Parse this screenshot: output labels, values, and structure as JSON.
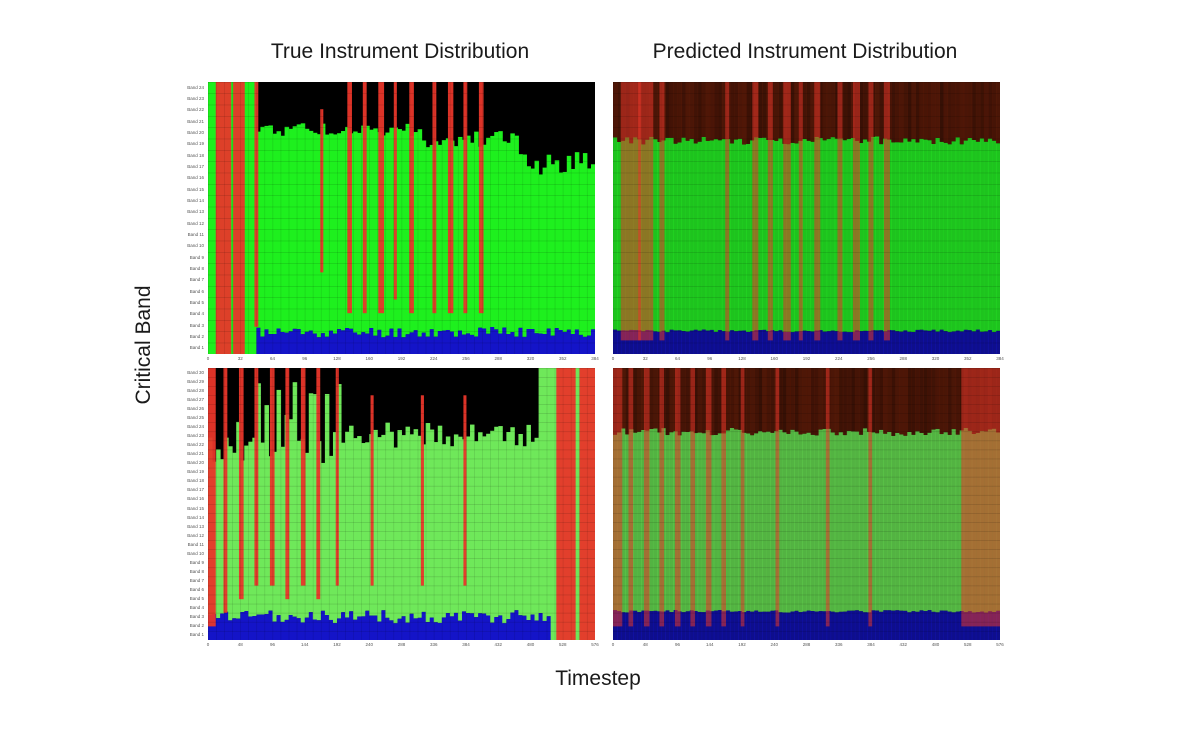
{
  "chart_data": [
    {
      "type": "heatmap",
      "panel": "top-left",
      "title": "True Instrument Distribution",
      "ylabel": "Critical Band",
      "xlabel": "Timestep",
      "y_categories": [
        "Band 1",
        "Band 2",
        "Band 3",
        "Band 4",
        "Band 5",
        "Band 6",
        "Band 7",
        "Band 8",
        "Band 9",
        "Band 10",
        "Band 11",
        "Band 12",
        "Band 13",
        "Band 14",
        "Band 15",
        "Band 16",
        "Band 17",
        "Band 18",
        "Band 19",
        "Band 20",
        "Band 21",
        "Band 22",
        "Band 23",
        "Band 24"
      ],
      "x_ticks": [
        "0",
        "32",
        "64",
        "96",
        "128",
        "160",
        "192",
        "224",
        "256",
        "288",
        "320",
        "352",
        "384"
      ],
      "channels": [
        "red",
        "green",
        "blue"
      ]
    },
    {
      "type": "heatmap",
      "panel": "top-right",
      "title": "Predicted Instrument Distribution",
      "x_ticks": [
        "0",
        "32",
        "64",
        "96",
        "128",
        "160",
        "192",
        "224",
        "256",
        "288",
        "320",
        "352",
        "384"
      ],
      "channels": [
        "red",
        "green",
        "blue"
      ]
    },
    {
      "type": "heatmap",
      "panel": "bottom-left",
      "y_categories": [
        "Band 1",
        "Band 2",
        "Band 3",
        "Band 4",
        "Band 5",
        "Band 6",
        "Band 7",
        "Band 8",
        "Band 9",
        "Band 10",
        "Band 11",
        "Band 12",
        "Band 13",
        "Band 14",
        "Band 15",
        "Band 16",
        "Band 17",
        "Band 18",
        "Band 19",
        "Band 20",
        "Band 21",
        "Band 22",
        "Band 23",
        "Band 24",
        "Band 25",
        "Band 26",
        "Band 27",
        "Band 28",
        "Band 29",
        "Band 30"
      ],
      "x_ticks": [
        "0",
        "48",
        "96",
        "144",
        "192",
        "240",
        "288",
        "336",
        "384",
        "432",
        "480",
        "528",
        "576"
      ],
      "channels": [
        "red",
        "green",
        "blue"
      ]
    },
    {
      "type": "heatmap",
      "panel": "bottom-right",
      "x_ticks": [
        "0",
        "48",
        "96",
        "144",
        "192",
        "240",
        "288",
        "336",
        "384",
        "432",
        "480",
        "528",
        "576"
      ],
      "channels": [
        "red",
        "green",
        "blue"
      ]
    }
  ],
  "labels": {
    "title_left": "True Instrument Distribution",
    "title_right": "Predicted Instrument Distribution",
    "ylabel": "Critical Band",
    "xlabel": "Timestep"
  },
  "colors": {
    "red": "#e8362a",
    "green": "#22f022",
    "light_green": "#6fe85a",
    "blue": "#1414c8",
    "background": "#000000"
  }
}
